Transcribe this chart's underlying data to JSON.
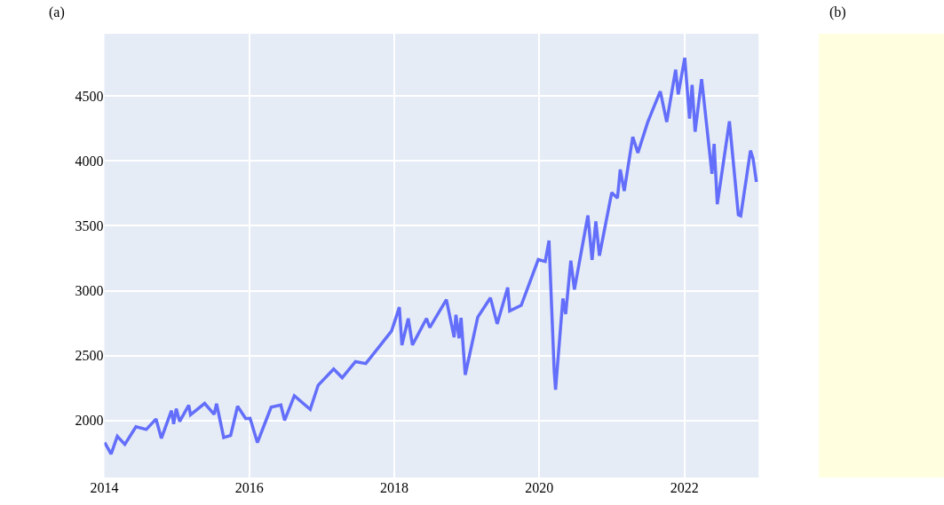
{
  "chart_data": [
    {
      "type": "line",
      "title": "(a)",
      "color": "#636efa",
      "grid": true,
      "legend": false,
      "x": [
        "2014-01-02",
        "2014-02-04",
        "2014-03-07",
        "2014-04-14",
        "2014-06-09",
        "2014-07-31",
        "2014-09-18",
        "2014-10-15",
        "2014-12-05",
        "2014-12-16",
        "2014-12-29",
        "2015-01-15",
        "2015-03-02",
        "2015-03-11",
        "2015-05-21",
        "2015-07-08",
        "2015-07-20",
        "2015-08-25",
        "2015-09-29",
        "2015-11-03",
        "2015-12-14",
        "2016-01-05",
        "2016-02-11",
        "2016-04-20",
        "2016-06-08",
        "2016-06-27",
        "2016-08-15",
        "2016-11-03",
        "2016-12-13",
        "2017-03-01",
        "2017-04-13",
        "2017-06-19",
        "2017-08-10",
        "2017-10-20",
        "2017-12-18",
        "2018-01-26",
        "2018-02-08",
        "2018-03-12",
        "2018-04-02",
        "2018-06-12",
        "2018-06-28",
        "2018-09-20",
        "2018-10-29",
        "2018-11-07",
        "2018-11-23",
        "2018-12-03",
        "2018-12-24",
        "2019-02-25",
        "2019-04-30",
        "2019-06-03",
        "2019-07-26",
        "2019-08-05",
        "2019-10-02",
        "2019-12-27",
        "2020-01-31",
        "2020-02-19",
        "2020-03-16",
        "2020-03-23",
        "2020-04-29",
        "2020-05-13",
        "2020-06-08",
        "2020-06-26",
        "2020-09-02",
        "2020-09-23",
        "2020-10-12",
        "2020-10-30",
        "2020-12-31",
        "2021-01-29",
        "2021-02-12",
        "2021-03-04",
        "2021-04-16",
        "2021-05-12",
        "2021-06-30",
        "2021-08-30",
        "2021-09-02",
        "2021-10-04",
        "2021-11-18",
        "2021-12-01",
        "2022-01-03",
        "2022-01-27",
        "2022-02-09",
        "2022-02-24",
        "2022-03-29",
        "2022-05-20",
        "2022-05-31",
        "2022-06-16",
        "2022-08-16",
        "2022-09-30",
        "2022-10-12",
        "2022-11-30",
        "2022-12-13",
        "2022-12-30"
      ],
      "values": [
        1830,
        1741,
        1878,
        1815,
        1951,
        1930,
        2011,
        1862,
        2075,
        1972,
        2090,
        1992,
        2117,
        2044,
        2131,
        2046,
        2128,
        1868,
        1884,
        2109,
        2013,
        2016,
        1829,
        2102,
        2119,
        2000,
        2190,
        2085,
        2271,
        2396,
        2329,
        2453,
        2438,
        2575,
        2690,
        2873,
        2581,
        2786,
        2582,
        2786,
        2716,
        2931,
        2641,
        2814,
        2633,
        2790,
        2351,
        2796,
        2945,
        2744,
        3025,
        2844,
        2887,
        3240,
        3225,
        3386,
        2386,
        2237,
        2939,
        2820,
        3232,
        3009,
        3580,
        3237,
        3534,
        3270,
        3756,
        3714,
        3934,
        3768,
        4185,
        4063,
        4297,
        4528,
        4536,
        4300,
        4704,
        4513,
        4796,
        4326,
        4587,
        4225,
        4631,
        3901,
        4132,
        3667,
        4305,
        3585,
        3577,
        4080,
        4019,
        3839
      ],
      "xlim": [
        "2014-01-01",
        "2023-01-10"
      ],
      "xticks": [
        {
          "value": "2014-01-01",
          "label": "2014"
        },
        {
          "value": "2016-01-01",
          "label": "2016"
        },
        {
          "value": "2018-01-01",
          "label": "2018"
        },
        {
          "value": "2020-01-01",
          "label": "2020"
        },
        {
          "value": "2022-01-01",
          "label": "2022"
        }
      ],
      "ylim": [
        1560,
        4980
      ],
      "yticks": [
        2000,
        2500,
        3000,
        3500,
        4000,
        4500
      ]
    },
    {
      "type": "other",
      "title": "(b)",
      "color": "#ffffe0"
    }
  ]
}
